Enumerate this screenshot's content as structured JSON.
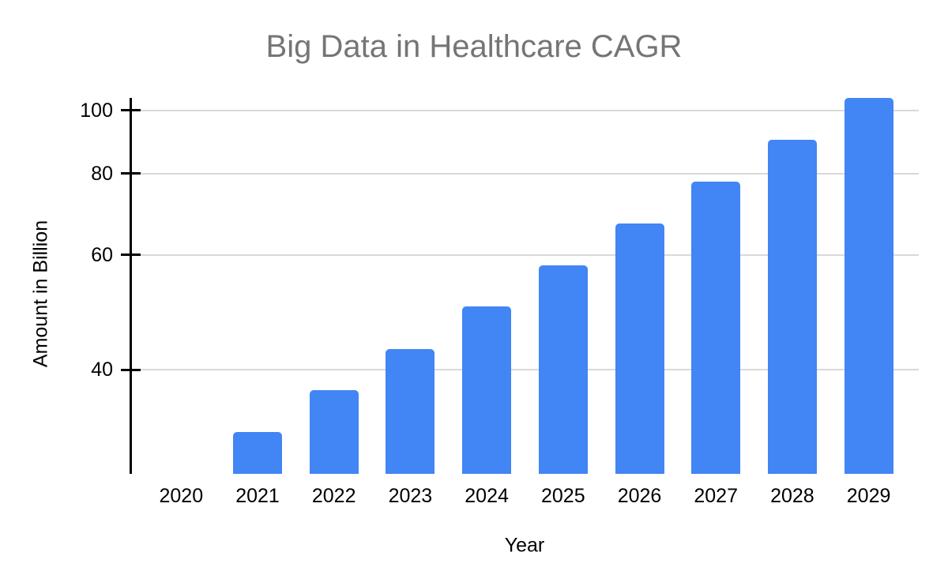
{
  "chart_data": {
    "type": "bar",
    "title": "Big Data in Healthcare CAGR",
    "xlabel": "Year",
    "ylabel": "Amount in Billion",
    "categories": [
      "2020",
      "2021",
      "2022",
      "2023",
      "2024",
      "2025",
      "2026",
      "2027",
      "2028",
      "2029"
    ],
    "values": [
      27.7,
      32.1,
      37.2,
      43.1,
      50,
      57.9,
      67.1,
      77.8,
      90.2,
      104.5
    ],
    "series_name": "Amount in Billion",
    "y_scale": "log",
    "ylim": [
      27.7,
      104.5
    ],
    "y_ticks": [
      40,
      60,
      80,
      100
    ],
    "grid": "horizontal",
    "legend": "none",
    "colors": {
      "bar": "#4285f4",
      "gridline": "#d9d9d9",
      "axis": "#000000",
      "title": "#757575",
      "label": "#000000",
      "background": "#ffffff"
    }
  }
}
